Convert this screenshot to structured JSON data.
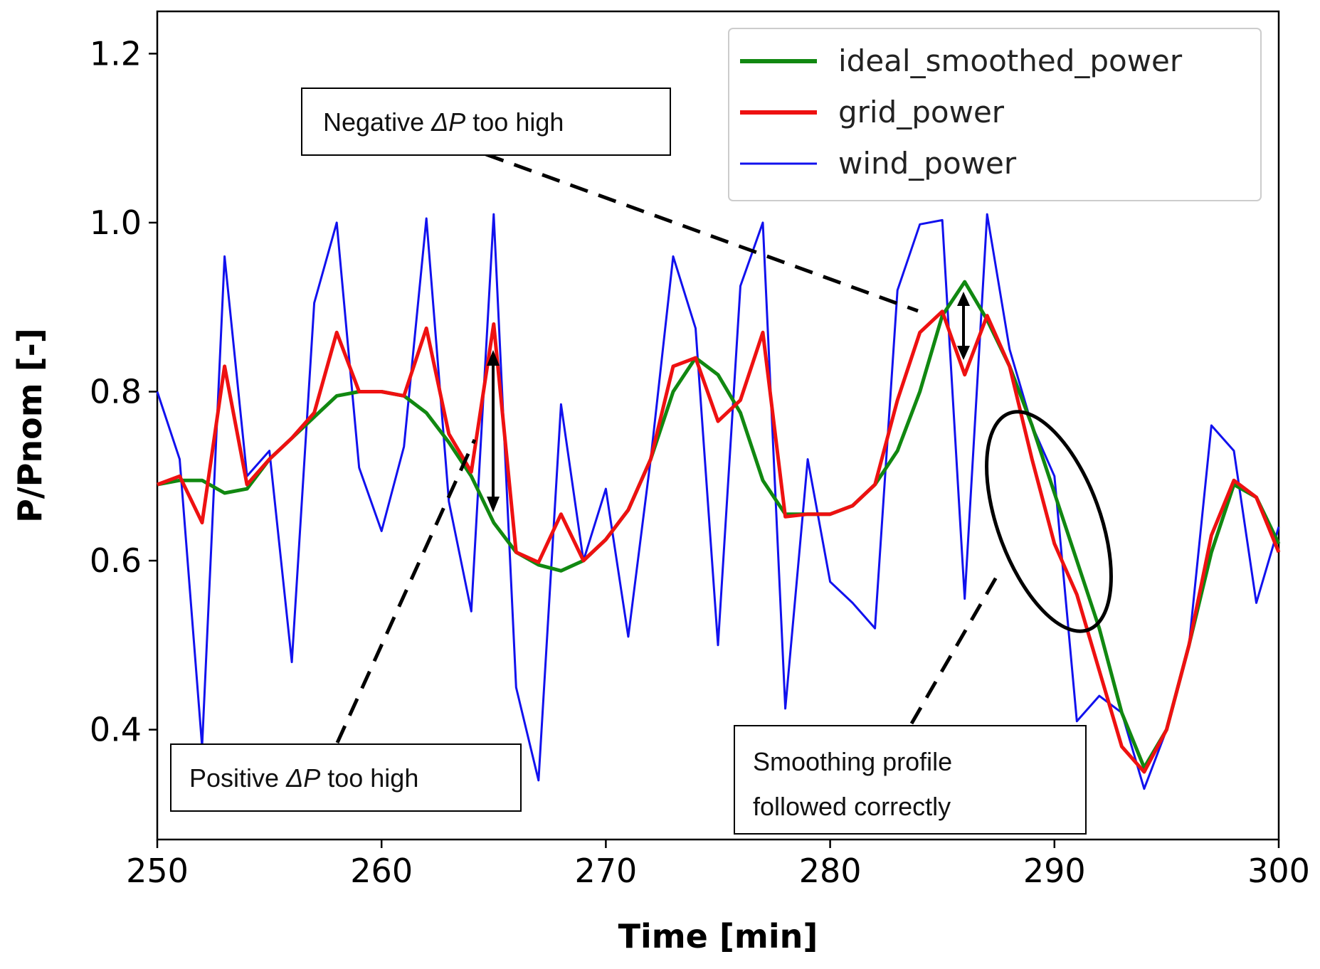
{
  "chart_data": {
    "type": "line",
    "title": "",
    "xlabel": "Time [min]",
    "ylabel": "P/Pnom [-]",
    "xlim": [
      250,
      300
    ],
    "ylim": [
      0.27,
      1.25
    ],
    "xticks": [
      250,
      260,
      270,
      280,
      290,
      300
    ],
    "yticks": [
      0.4,
      0.6,
      0.8,
      1.0,
      1.2
    ],
    "ytick_labels": [
      "0.4",
      "0.6",
      "0.8",
      "1.0",
      "1.2"
    ],
    "grid": false,
    "legend_position": "top-right",
    "x": [
      250,
      251,
      252,
      253,
      254,
      255,
      256,
      257,
      258,
      259,
      260,
      261,
      262,
      263,
      264,
      265,
      266,
      267,
      268,
      269,
      270,
      271,
      272,
      273,
      274,
      275,
      276,
      277,
      278,
      279,
      280,
      281,
      282,
      283,
      284,
      285,
      286,
      287,
      288,
      289,
      290,
      291,
      292,
      293,
      294,
      295,
      296,
      297,
      298,
      299,
      300
    ],
    "series": [
      {
        "name": "ideal_smoothed_power",
        "color": "#118811",
        "values": [
          0.69,
          0.695,
          0.695,
          0.68,
          0.685,
          0.72,
          0.745,
          0.77,
          0.795,
          0.8,
          0.8,
          0.795,
          0.775,
          0.74,
          0.7,
          0.645,
          0.61,
          0.595,
          0.588,
          0.6,
          0.625,
          0.66,
          0.72,
          0.8,
          0.84,
          0.82,
          0.775,
          0.695,
          0.655,
          0.655,
          0.655,
          0.665,
          0.69,
          0.73,
          0.8,
          0.89,
          0.93,
          0.885,
          0.83,
          0.76,
          0.68,
          0.6,
          0.52,
          0.42,
          0.355,
          0.4,
          0.5,
          0.61,
          0.69,
          0.675,
          0.62
        ]
      },
      {
        "name": "grid_power",
        "color": "#ee1111",
        "values": [
          0.69,
          0.7,
          0.645,
          0.83,
          0.69,
          0.72,
          0.745,
          0.775,
          0.87,
          0.8,
          0.8,
          0.795,
          0.875,
          0.75,
          0.705,
          0.88,
          0.61,
          0.598,
          0.655,
          0.6,
          0.625,
          0.66,
          0.72,
          0.83,
          0.84,
          0.765,
          0.79,
          0.87,
          0.652,
          0.655,
          0.655,
          0.665,
          0.69,
          0.79,
          0.87,
          0.895,
          0.82,
          0.89,
          0.83,
          0.72,
          0.62,
          0.56,
          0.47,
          0.38,
          0.35,
          0.4,
          0.5,
          0.63,
          0.695,
          0.675,
          0.61
        ]
      },
      {
        "name": "wind_power",
        "color": "#1111ee",
        "values": [
          0.8,
          0.72,
          0.38,
          0.96,
          0.7,
          0.73,
          0.48,
          0.905,
          1.0,
          0.71,
          0.635,
          0.735,
          1.005,
          0.67,
          0.54,
          1.01,
          0.45,
          0.34,
          0.785,
          0.6,
          0.685,
          0.51,
          0.72,
          0.96,
          0.875,
          0.5,
          0.925,
          1.0,
          0.425,
          0.72,
          0.575,
          0.55,
          0.52,
          0.92,
          0.998,
          1.003,
          0.555,
          1.01,
          0.85,
          0.76,
          0.7,
          0.41,
          0.44,
          0.42,
          0.33,
          0.4,
          0.5,
          0.76,
          0.73,
          0.55,
          0.64
        ]
      }
    ],
    "annotations": [
      {
        "text_before": "Negative ",
        "symbol": "ΔP",
        "text_after": " too high"
      },
      {
        "text_before": "Positive ",
        "symbol": "ΔP",
        "text_after": " too high"
      },
      {
        "line1": "Smoothing profile",
        "line2": "followed correctly"
      }
    ]
  }
}
